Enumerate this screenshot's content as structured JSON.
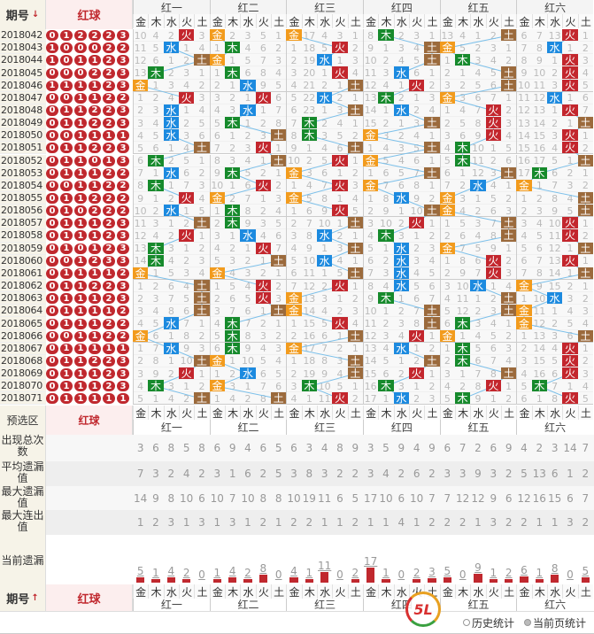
{
  "header": {
    "issue_label": "期号",
    "sort_arrow": "↓",
    "balls_label": "红球"
  },
  "groups": [
    "红一",
    "红二",
    "红三",
    "红四",
    "红五",
    "红六"
  ],
  "elements": [
    "金",
    "木",
    "水",
    "火",
    "土"
  ],
  "element_colors": {
    "金": "#f29b1d",
    "木": "#168a2c",
    "水": "#1c8adf",
    "火": "#c3262d",
    "土": "#9b6a3c"
  },
  "first_row_values": [
    [
      10,
      4,
      2,
      0,
      3
    ],
    [
      0,
      2,
      3,
      5,
      1
    ],
    [
      0,
      17,
      4,
      3,
      1
    ],
    [
      8,
      0,
      2,
      3,
      1
    ],
    [
      13,
      4,
      1,
      2,
      0
    ],
    [
      6,
      7,
      13,
      0,
      1
    ]
  ],
  "rows": [
    {
      "issue": "2018042",
      "balls": [
        "0",
        "1",
        "2",
        "2",
        "2",
        "3"
      ],
      "hits": [
        "火",
        "金",
        "金",
        "木",
        "土",
        "火"
      ]
    },
    {
      "issue": "2018043",
      "balls": [
        "1",
        "0",
        "0",
        "0",
        "2",
        "2"
      ],
      "hits": [
        "水",
        "木",
        "火",
        "土",
        "金",
        "水"
      ]
    },
    {
      "issue": "2018044",
      "balls": [
        "1",
        "0",
        "1",
        "1",
        "2",
        "3"
      ],
      "hits": [
        "土",
        "金",
        "水",
        "土",
        "木",
        "火"
      ]
    },
    {
      "issue": "2018045",
      "balls": [
        "0",
        "0",
        "0",
        "2",
        "2",
        "3"
      ],
      "hits": [
        "木",
        "木",
        "火",
        "水",
        "土",
        "火"
      ]
    },
    {
      "issue": "2018046",
      "balls": [
        "1",
        "1",
        "1",
        "1",
        "2",
        "3"
      ],
      "hits": [
        "金",
        "水",
        "土",
        "火",
        "土",
        "火"
      ]
    },
    {
      "issue": "2018047",
      "balls": [
        "0",
        "0",
        "1",
        "1",
        "2",
        "2"
      ],
      "hits": [
        "火",
        "火",
        "水",
        "木",
        "金",
        "水"
      ]
    },
    {
      "issue": "2018048",
      "balls": [
        "0",
        "1",
        "1",
        "2",
        "2",
        "3"
      ],
      "hits": [
        "水",
        "水",
        "土",
        "水",
        "火",
        "火"
      ]
    },
    {
      "issue": "2018049",
      "balls": [
        "0",
        "1",
        "1",
        "2",
        "2",
        "3"
      ],
      "hits": [
        "水",
        "木",
        "木",
        "土",
        "火",
        "土"
      ]
    },
    {
      "issue": "2018050",
      "balls": [
        "0",
        "0",
        "1",
        "1",
        "1",
        "1"
      ],
      "hits": [
        "水",
        "土",
        "木",
        "金",
        "火",
        "火"
      ]
    },
    {
      "issue": "2018051",
      "balls": [
        "0",
        "1",
        "1",
        "2",
        "2",
        "3"
      ],
      "hits": [
        "土",
        "火",
        "土",
        "土",
        "木",
        "火"
      ]
    },
    {
      "issue": "2018052",
      "balls": [
        "0",
        "1",
        "1",
        "0",
        "1",
        "3"
      ],
      "hits": [
        "木",
        "土",
        "火",
        "金",
        "木",
        "土"
      ]
    },
    {
      "issue": "2018053",
      "balls": [
        "0",
        "1",
        "1",
        "1",
        "2",
        "2"
      ],
      "hits": [
        "水",
        "木",
        "金",
        "土",
        "土",
        "木"
      ]
    },
    {
      "issue": "2018054",
      "balls": [
        "0",
        "0",
        "1",
        "1",
        "2",
        "2"
      ],
      "hits": [
        "木",
        "火",
        "火",
        "金",
        "水",
        "金"
      ]
    },
    {
      "issue": "2018055",
      "balls": [
        "0",
        "1",
        "1",
        "2",
        "2",
        "2"
      ],
      "hits": [
        "火",
        "金",
        "金",
        "水",
        "金",
        "土"
      ]
    },
    {
      "issue": "2018056",
      "balls": [
        "0",
        "1",
        "0",
        "2",
        "2",
        "2"
      ],
      "hits": [
        "水",
        "木",
        "火",
        "土",
        "金",
        "土"
      ]
    },
    {
      "issue": "2018057",
      "balls": [
        "0",
        "1",
        "1",
        "1",
        "2",
        "3"
      ],
      "hits": [
        "土",
        "木",
        "土",
        "火",
        "土",
        "火"
      ]
    },
    {
      "issue": "2018058",
      "balls": [
        "0",
        "1",
        "1",
        "1",
        "2",
        "3"
      ],
      "hits": [
        "火",
        "水",
        "水",
        "木",
        "土",
        "火"
      ]
    },
    {
      "issue": "2018059",
      "balls": [
        "0",
        "1",
        "0",
        "1",
        "2",
        "3"
      ],
      "hits": [
        "木",
        "火",
        "土",
        "水",
        "金",
        "土"
      ]
    },
    {
      "issue": "2018060",
      "balls": [
        "0",
        "0",
        "1",
        "2",
        "3",
        "3"
      ],
      "hits": [
        "木",
        "土",
        "水",
        "水",
        "火",
        "火"
      ]
    },
    {
      "issue": "2018061",
      "balls": [
        "0",
        "1",
        "1",
        "1",
        "1",
        "2"
      ],
      "hits": [
        "金",
        "金",
        "土",
        "水",
        "火",
        "土"
      ]
    },
    {
      "issue": "2018062",
      "balls": [
        "0",
        "1",
        "1",
        "2",
        "2",
        "3"
      ],
      "hits": [
        "土",
        "火",
        "火",
        "水",
        "水",
        "金"
      ]
    },
    {
      "issue": "2018063",
      "balls": [
        "0",
        "1",
        "1",
        "1",
        "2",
        "3"
      ],
      "hits": [
        "土",
        "火",
        "金",
        "木",
        "土",
        "水"
      ]
    },
    {
      "issue": "2018064",
      "balls": [
        "0",
        "1",
        "1",
        "1",
        "1",
        "2"
      ],
      "hits": [
        "土",
        "土",
        "金",
        "土",
        "土",
        "金"
      ]
    },
    {
      "issue": "2018065",
      "balls": [
        "0",
        "1",
        "1",
        "1",
        "2",
        "2"
      ],
      "hits": [
        "水",
        "木",
        "火",
        "土",
        "木",
        "金"
      ]
    },
    {
      "issue": "2018066",
      "balls": [
        "0",
        "0",
        "1",
        "1",
        "2",
        "2"
      ],
      "hits": [
        "金",
        "木",
        "土",
        "火",
        "金",
        "土"
      ]
    },
    {
      "issue": "2018067",
      "balls": [
        "0",
        "1",
        "1",
        "1",
        "1",
        "1"
      ],
      "hits": [
        "水",
        "木",
        "金",
        "水",
        "木",
        "火"
      ]
    },
    {
      "issue": "2018068",
      "balls": [
        "0",
        "1",
        "1",
        "2",
        "2",
        "3"
      ],
      "hits": [
        "土",
        "金",
        "土",
        "土",
        "木",
        "火"
      ]
    },
    {
      "issue": "2018069",
      "balls": [
        "0",
        "1",
        "1",
        "1",
        "2",
        "3"
      ],
      "hits": [
        "火",
        "水",
        "土",
        "火",
        "土",
        "火"
      ]
    },
    {
      "issue": "2018070",
      "balls": [
        "0",
        "1",
        "1",
        "1",
        "2",
        "3"
      ],
      "hits": [
        "木",
        "金",
        "木",
        "木",
        "火",
        "木"
      ]
    },
    {
      "issue": "2018071",
      "balls": [
        "0",
        "1",
        "1",
        "1",
        "1",
        "1"
      ],
      "hits": [
        "土",
        "土",
        "火",
        "水",
        "木",
        "火"
      ]
    }
  ],
  "preselect_label": "预选区",
  "stats": [
    {
      "label": "出现总次数",
      "values": [
        [
          3,
          6,
          8,
          5,
          8
        ],
        [
          6,
          9,
          4,
          6,
          5
        ],
        [
          6,
          3,
          4,
          8,
          9
        ],
        [
          3,
          5,
          9,
          4,
          9
        ],
        [
          6,
          7,
          2,
          6,
          9
        ],
        [
          4,
          2,
          3,
          14,
          7
        ]
      ]
    },
    {
      "label": "平均遗漏值",
      "values": [
        [
          7,
          3,
          2,
          4,
          2
        ],
        [
          3,
          1,
          6,
          2,
          5
        ],
        [
          3,
          8,
          3,
          2,
          2
        ],
        [
          3,
          4,
          2,
          6,
          2
        ],
        [
          3,
          3,
          9,
          3,
          2
        ],
        [
          5,
          13,
          6,
          1,
          2
        ]
      ]
    },
    {
      "label": "最大遗漏值",
      "values": [
        [
          14,
          9,
          8,
          10,
          6
        ],
        [
          10,
          7,
          10,
          8,
          8
        ],
        [
          10,
          19,
          11,
          6,
          5
        ],
        [
          17,
          10,
          6,
          10,
          7
        ],
        [
          7,
          12,
          12,
          9,
          6
        ],
        [
          12,
          16,
          15,
          6,
          7
        ]
      ]
    },
    {
      "label": "最大连出值",
      "values": [
        [
          1,
          2,
          3,
          1,
          3
        ],
        [
          1,
          3,
          1,
          2,
          1
        ],
        [
          2,
          2,
          1,
          1,
          2
        ],
        [
          1,
          1,
          4,
          1,
          2
        ],
        [
          2,
          2,
          1,
          3,
          2
        ],
        [
          2,
          1,
          1,
          3,
          2
        ]
      ]
    }
  ],
  "current_omission": {
    "label": "当前遗漏",
    "values": [
      [
        5,
        1,
        4,
        2,
        0
      ],
      [
        1,
        4,
        2,
        8,
        0
      ],
      [
        4,
        1,
        11,
        0,
        2
      ],
      [
        17,
        1,
        0,
        2,
        3
      ],
      [
        5,
        0,
        9,
        1,
        2
      ],
      [
        6,
        1,
        8,
        0,
        5
      ]
    ]
  },
  "footer": {
    "issue_label": "期号",
    "sort_arrow": "↑",
    "balls_label": "红球",
    "history_stats": "历史统计",
    "page_stats": "当前页统计",
    "logo_text": "5L"
  }
}
